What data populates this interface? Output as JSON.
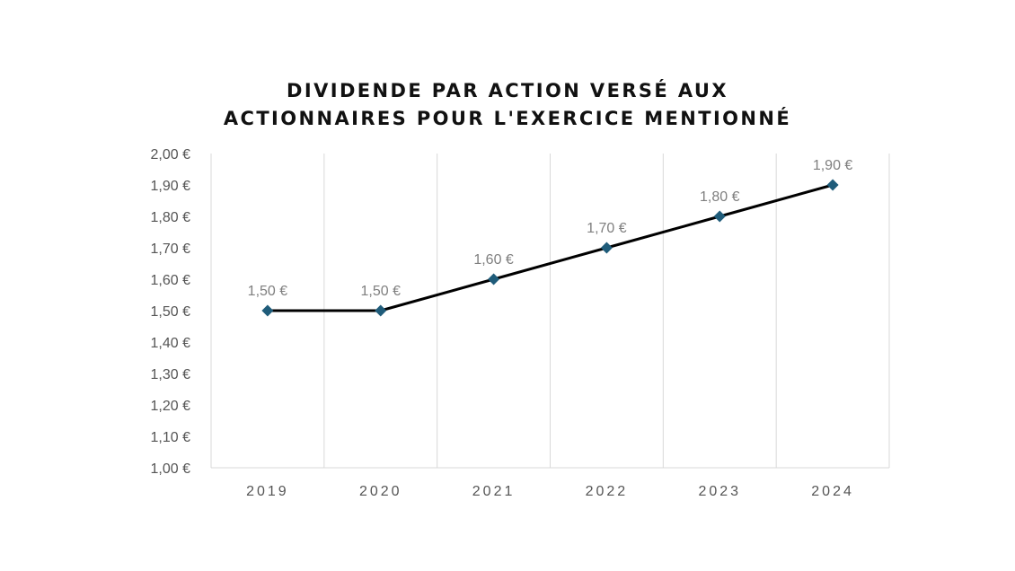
{
  "chart_data": {
    "type": "line",
    "title_lines": [
      "DIVIDENDE PAR ACTION VERSÉ AUX",
      "ACTIONNAIRES POUR L'EXERCICE MENTIONNÉ"
    ],
    "xlabel": "",
    "ylabel": "",
    "categories": [
      "2019",
      "2020",
      "2021",
      "2022",
      "2023",
      "2024"
    ],
    "series": [
      {
        "values": [
          1.5,
          1.5,
          1.6,
          1.7,
          1.8,
          1.9
        ],
        "data_labels": [
          "1,50 €",
          "1,50 €",
          "1,60 €",
          "1,70 €",
          "1,80 €",
          "1,90 €"
        ]
      }
    ],
    "ylim": [
      1.0,
      2.0
    ],
    "yticks": [
      {
        "value": 1.0,
        "label": "1,00 €"
      },
      {
        "value": 1.1,
        "label": "1,10 €"
      },
      {
        "value": 1.2,
        "label": "1,20 €"
      },
      {
        "value": 1.3,
        "label": "1,30 €"
      },
      {
        "value": 1.4,
        "label": "1,40 €"
      },
      {
        "value": 1.5,
        "label": "1,50 €"
      },
      {
        "value": 1.6,
        "label": "1,60 €"
      },
      {
        "value": 1.7,
        "label": "1,70 €"
      },
      {
        "value": 1.8,
        "label": "1,80 €"
      },
      {
        "value": 1.9,
        "label": "1,90 €"
      },
      {
        "value": 2.0,
        "label": "2,00 €"
      }
    ],
    "grid": "vertical",
    "marker": "diamond",
    "legend": "none",
    "colors": {
      "line": "#000000",
      "marker": "#1f5c7a"
    }
  }
}
